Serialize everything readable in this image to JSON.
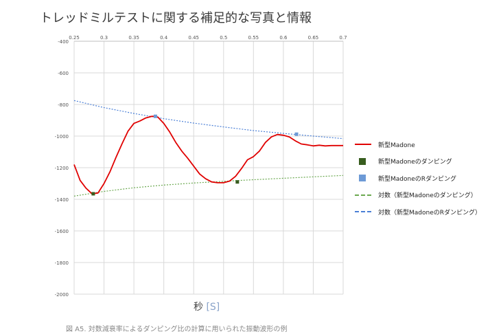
{
  "page": {
    "title": "トレッドミルテストに関する補足的な写真と情報",
    "caption": "図 A5. 対数減衰率によるダンピング比の計算に用いられた振動波形の例"
  },
  "chart_data": {
    "type": "line",
    "xlabel": "秒",
    "xlabel_unit": "[S]",
    "xlim": [
      0.25,
      0.7
    ],
    "ylim": [
      -2000,
      -400
    ],
    "xticks": [
      "0.25",
      "0.3",
      "0.35",
      "0.4",
      "0.45",
      "0.5",
      "0.55",
      "0.6",
      "0.65",
      "0.7"
    ],
    "yticks": [
      "-400",
      "-600",
      "-800",
      "-1000",
      "-1200",
      "-1400",
      "-1600",
      "-1800",
      "-2000"
    ],
    "grid": true,
    "legend_position": "right",
    "series": [
      {
        "name": "新型Madone",
        "kind": "line",
        "color": "#e00000",
        "x": [
          0.25,
          0.26,
          0.27,
          0.28,
          0.29,
          0.3,
          0.31,
          0.32,
          0.33,
          0.34,
          0.35,
          0.36,
          0.37,
          0.38,
          0.385,
          0.39,
          0.4,
          0.41,
          0.42,
          0.43,
          0.44,
          0.45,
          0.46,
          0.47,
          0.48,
          0.49,
          0.5,
          0.51,
          0.52,
          0.53,
          0.54,
          0.55,
          0.56,
          0.57,
          0.58,
          0.59,
          0.6,
          0.61,
          0.62,
          0.63,
          0.64,
          0.65,
          0.66,
          0.67,
          0.68,
          0.69,
          0.7
        ],
        "y": [
          -1180,
          -1280,
          -1330,
          -1365,
          -1360,
          -1300,
          -1225,
          -1135,
          -1050,
          -970,
          -920,
          -905,
          -885,
          -875,
          -875,
          -880,
          -920,
          -975,
          -1040,
          -1095,
          -1140,
          -1190,
          -1240,
          -1270,
          -1290,
          -1295,
          -1295,
          -1285,
          -1255,
          -1205,
          -1150,
          -1130,
          -1095,
          -1040,
          -1005,
          -990,
          -995,
          -1005,
          -1030,
          -1050,
          -1055,
          -1062,
          -1058,
          -1062,
          -1060,
          -1060,
          -1060
        ]
      },
      {
        "name": "新型Madoneのダンピング",
        "kind": "marker",
        "color": "#385d1f",
        "x": [
          0.282,
          0.523
        ],
        "y": [
          -1365,
          -1290
        ]
      },
      {
        "name": "新型MadoneのRダンピング",
        "kind": "marker",
        "color": "#6d9ad6",
        "x": [
          0.386,
          0.622
        ],
        "y": [
          -875,
          -988
        ]
      },
      {
        "name": "対数（新型Madoneのダンピング）",
        "kind": "trend",
        "color": "#6aa84f",
        "x": [
          0.25,
          0.3,
          0.35,
          0.4,
          0.45,
          0.5,
          0.55,
          0.6,
          0.65,
          0.7
        ],
        "y": [
          -1380,
          -1350,
          -1327,
          -1310,
          -1297,
          -1286,
          -1276,
          -1267,
          -1258,
          -1249
        ]
      },
      {
        "name": "対数（新型MadoneのRダンピング）",
        "kind": "trend",
        "color": "#4a7fd6",
        "x": [
          0.25,
          0.3,
          0.35,
          0.4,
          0.45,
          0.5,
          0.55,
          0.6,
          0.65,
          0.7
        ],
        "y": [
          -775,
          -820,
          -857,
          -890,
          -918,
          -942,
          -965,
          -983,
          -1000,
          -1016
        ]
      }
    ]
  }
}
